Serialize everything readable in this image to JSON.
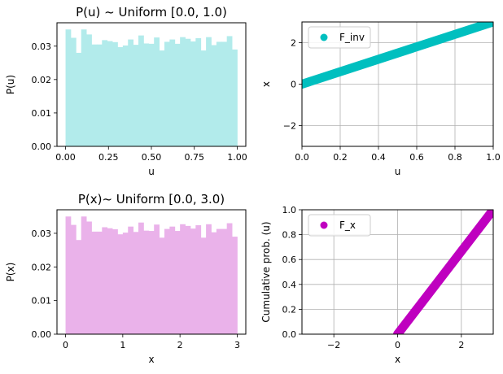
{
  "chart_data": [
    {
      "type": "bar",
      "title": "P(u) ~ Uniform [0.0, 1.0)",
      "xlabel": "u",
      "ylabel": "P(u)",
      "xlim": [
        -0.05,
        1.05
      ],
      "ylim": [
        0,
        0.037
      ],
      "xticks": [
        "0.00",
        "0.25",
        "0.50",
        "0.75",
        "1.00"
      ],
      "xtick_values": [
        0,
        0.25,
        0.5,
        0.75,
        1.0
      ],
      "yticks": [
        "0.00",
        "0.01",
        "0.02",
        "0.03"
      ],
      "ytick_values": [
        0,
        0.01,
        0.02,
        0.03
      ],
      "bin_range": [
        0,
        1.0
      ],
      "values": [
        0.035,
        0.0325,
        0.028,
        0.035,
        0.0335,
        0.0305,
        0.0305,
        0.0318,
        0.0315,
        0.0312,
        0.0297,
        0.0302,
        0.032,
        0.0304,
        0.0332,
        0.0308,
        0.0307,
        0.0326,
        0.0287,
        0.0313,
        0.032,
        0.0307,
        0.0327,
        0.0322,
        0.0314,
        0.0324,
        0.0287,
        0.0327,
        0.0303,
        0.0313,
        0.0313,
        0.033,
        0.029
      ],
      "color": "#b2ebeb",
      "grid": false
    },
    {
      "type": "scatter",
      "xlabel": "u",
      "ylabel": "x",
      "xlim": [
        0,
        1.0
      ],
      "ylim": [
        -3,
        3
      ],
      "xticks": [
        "0.0",
        "0.2",
        "0.4",
        "0.6",
        "0.8",
        "1.0"
      ],
      "xtick_values": [
        0,
        0.2,
        0.4,
        0.6,
        0.8,
        1.0
      ],
      "yticks": [
        "−2",
        "0",
        "2"
      ],
      "ytick_values": [
        -2,
        0,
        2
      ],
      "series": [
        {
          "name": "F_inv",
          "x": [
            0,
            1.0
          ],
          "y": [
            0,
            3.0
          ],
          "color": "#00bfbf"
        }
      ],
      "legend": "top-left",
      "grid": true
    },
    {
      "type": "bar",
      "title": "P(x)~ Uniform [0.0, 3.0)",
      "xlabel": "x",
      "ylabel": "P(x)",
      "xlim": [
        -0.15,
        3.15
      ],
      "ylim": [
        0,
        0.037
      ],
      "xticks": [
        "0",
        "1",
        "2",
        "3"
      ],
      "xtick_values": [
        0,
        1,
        2,
        3
      ],
      "yticks": [
        "0.00",
        "0.01",
        "0.02",
        "0.03"
      ],
      "ytick_values": [
        0,
        0.01,
        0.02,
        0.03
      ],
      "bin_range": [
        0,
        3.0
      ],
      "values": [
        0.035,
        0.0325,
        0.028,
        0.035,
        0.0335,
        0.0305,
        0.0305,
        0.0318,
        0.0315,
        0.0312,
        0.0297,
        0.0302,
        0.032,
        0.0304,
        0.0332,
        0.0308,
        0.0307,
        0.0326,
        0.0287,
        0.0313,
        0.032,
        0.0307,
        0.0327,
        0.0322,
        0.0314,
        0.0324,
        0.0287,
        0.0327,
        0.0303,
        0.0313,
        0.0313,
        0.033,
        0.029
      ],
      "color": "#eab2ea",
      "grid": false
    },
    {
      "type": "scatter",
      "xlabel": "x",
      "ylabel": "Cumulative prob. (u)",
      "xlim": [
        -3,
        3
      ],
      "ylim": [
        0,
        1.0
      ],
      "xticks": [
        "−2",
        "0",
        "2"
      ],
      "xtick_values": [
        -2,
        0,
        2
      ],
      "yticks": [
        "0.0",
        "0.2",
        "0.4",
        "0.6",
        "0.8",
        "1.0"
      ],
      "ytick_values": [
        0,
        0.2,
        0.4,
        0.6,
        0.8,
        1.0
      ],
      "series": [
        {
          "name": "F_x",
          "x": [
            0,
            3.0
          ],
          "y": [
            0,
            1.0
          ],
          "color": "#bf00bf"
        }
      ],
      "legend": "top-left",
      "grid": true
    }
  ]
}
